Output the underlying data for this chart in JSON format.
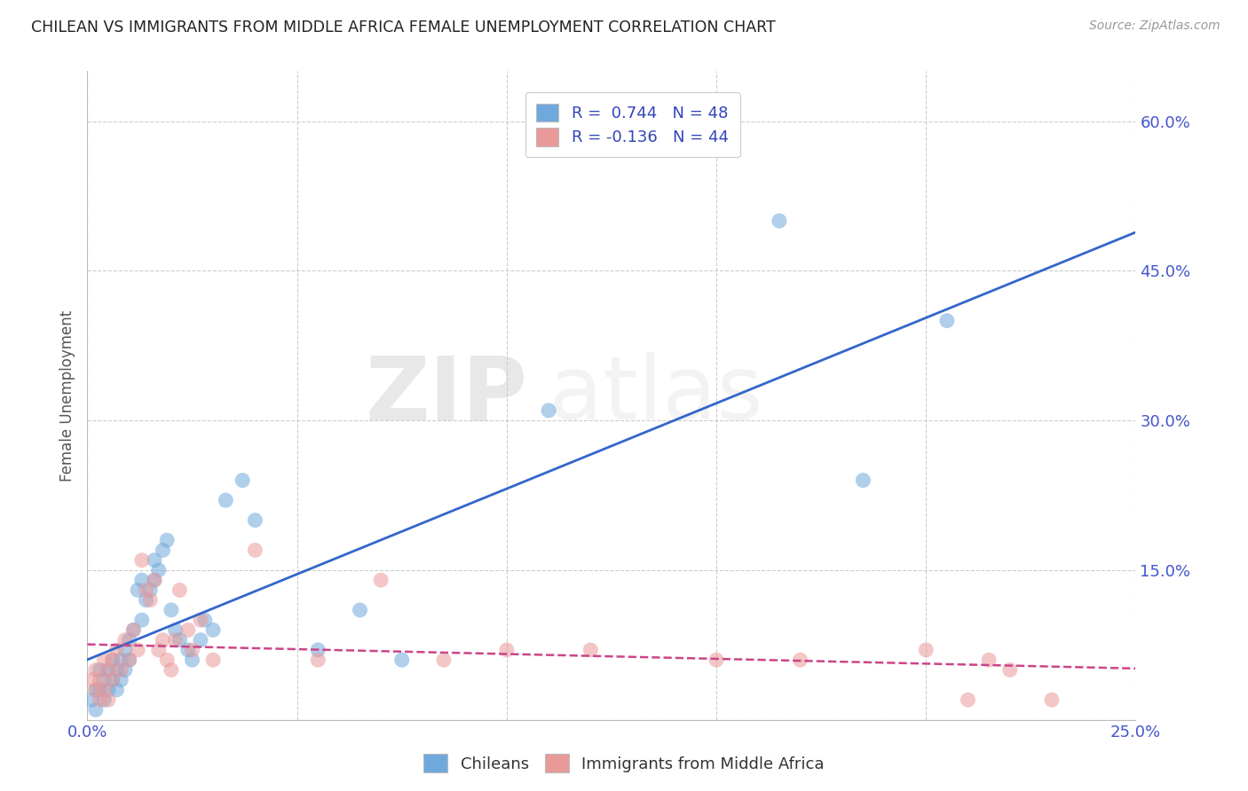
{
  "title": "CHILEAN VS IMMIGRANTS FROM MIDDLE AFRICA FEMALE UNEMPLOYMENT CORRELATION CHART",
  "source": "Source: ZipAtlas.com",
  "ylabel": "Female Unemployment",
  "xlim": [
    0.0,
    0.25
  ],
  "ylim": [
    0.0,
    0.65
  ],
  "yticks": [
    0.0,
    0.15,
    0.3,
    0.45,
    0.6
  ],
  "ytick_labels": [
    "",
    "15.0%",
    "30.0%",
    "45.0%",
    "60.0%"
  ],
  "xticks": [
    0.0,
    0.05,
    0.1,
    0.15,
    0.2,
    0.25
  ],
  "xtick_labels": [
    "0.0%",
    "",
    "",
    "",
    "",
    "25.0%"
  ],
  "chilean_R": 0.744,
  "chilean_N": 48,
  "immigrant_R": -0.136,
  "immigrant_N": 44,
  "chilean_color": "#6fa8dc",
  "immigrant_color": "#ea9999",
  "chilean_line_color": "#3366cc",
  "immigrant_line_color": "#cc4488",
  "watermark_zip": "ZIP",
  "watermark_atlas": "atlas",
  "background_color": "#ffffff",
  "grid_color": "#cccccc",
  "chilean_x": [
    0.001,
    0.002,
    0.002,
    0.003,
    0.003,
    0.004,
    0.004,
    0.005,
    0.005,
    0.006,
    0.006,
    0.007,
    0.007,
    0.008,
    0.008,
    0.009,
    0.009,
    0.01,
    0.01,
    0.011,
    0.012,
    0.013,
    0.013,
    0.014,
    0.015,
    0.016,
    0.016,
    0.017,
    0.018,
    0.019,
    0.02,
    0.021,
    0.022,
    0.024,
    0.025,
    0.027,
    0.028,
    0.03,
    0.033,
    0.037,
    0.04,
    0.055,
    0.065,
    0.075,
    0.11,
    0.165,
    0.185,
    0.205
  ],
  "chilean_y": [
    0.02,
    0.03,
    0.01,
    0.03,
    0.05,
    0.04,
    0.02,
    0.05,
    0.03,
    0.04,
    0.06,
    0.05,
    0.03,
    0.06,
    0.04,
    0.07,
    0.05,
    0.08,
    0.06,
    0.09,
    0.13,
    0.1,
    0.14,
    0.12,
    0.13,
    0.14,
    0.16,
    0.15,
    0.17,
    0.18,
    0.11,
    0.09,
    0.08,
    0.07,
    0.06,
    0.08,
    0.1,
    0.09,
    0.22,
    0.24,
    0.2,
    0.07,
    0.11,
    0.06,
    0.31,
    0.5,
    0.24,
    0.4
  ],
  "immigrant_x": [
    0.001,
    0.002,
    0.002,
    0.003,
    0.003,
    0.004,
    0.004,
    0.005,
    0.005,
    0.006,
    0.006,
    0.007,
    0.008,
    0.009,
    0.01,
    0.011,
    0.012,
    0.013,
    0.014,
    0.015,
    0.016,
    0.017,
    0.018,
    0.019,
    0.02,
    0.021,
    0.022,
    0.024,
    0.025,
    0.027,
    0.03,
    0.04,
    0.055,
    0.07,
    0.085,
    0.1,
    0.12,
    0.15,
    0.17,
    0.2,
    0.21,
    0.215,
    0.22,
    0.23
  ],
  "immigrant_y": [
    0.04,
    0.03,
    0.05,
    0.04,
    0.02,
    0.06,
    0.03,
    0.05,
    0.02,
    0.04,
    0.06,
    0.07,
    0.05,
    0.08,
    0.06,
    0.09,
    0.07,
    0.16,
    0.13,
    0.12,
    0.14,
    0.07,
    0.08,
    0.06,
    0.05,
    0.08,
    0.13,
    0.09,
    0.07,
    0.1,
    0.06,
    0.17,
    0.06,
    0.14,
    0.06,
    0.07,
    0.07,
    0.06,
    0.06,
    0.07,
    0.02,
    0.06,
    0.05,
    0.02
  ]
}
